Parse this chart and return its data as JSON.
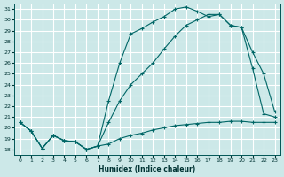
{
  "xlabel": "Humidex (Indice chaleur)",
  "bg_color": "#cce8e8",
  "grid_color": "#ffffff",
  "line_color": "#006666",
  "xlim": [
    -0.5,
    23.5
  ],
  "ylim": [
    17.5,
    31.5
  ],
  "xticks": [
    0,
    1,
    2,
    3,
    4,
    5,
    6,
    7,
    8,
    9,
    10,
    11,
    12,
    13,
    14,
    15,
    16,
    17,
    18,
    19,
    20,
    21,
    22,
    23
  ],
  "yticks": [
    18,
    19,
    20,
    21,
    22,
    23,
    24,
    25,
    26,
    27,
    28,
    29,
    30,
    31
  ],
  "line1_x": [
    0,
    1,
    2,
    3,
    4,
    5,
    6,
    7,
    8,
    9,
    10,
    11,
    12,
    13,
    14,
    15,
    16,
    17,
    18,
    19,
    20,
    21,
    22,
    23
  ],
  "line1_y": [
    20.5,
    19.7,
    18.1,
    19.3,
    18.8,
    18.7,
    18.0,
    18.3,
    18.5,
    19.0,
    19.3,
    19.5,
    19.8,
    20.0,
    20.2,
    20.3,
    20.4,
    20.5,
    20.5,
    20.6,
    20.6,
    20.5,
    20.5,
    20.5
  ],
  "line2_x": [
    0,
    1,
    2,
    3,
    4,
    5,
    6,
    7,
    8,
    9,
    10,
    11,
    12,
    13,
    14,
    15,
    16,
    17,
    18,
    19,
    20,
    21,
    22,
    23
  ],
  "line2_y": [
    20.5,
    19.7,
    18.1,
    19.3,
    18.8,
    18.7,
    18.0,
    18.3,
    20.5,
    22.5,
    24.0,
    25.0,
    26.0,
    27.3,
    28.5,
    29.5,
    30.0,
    30.5,
    30.5,
    29.5,
    29.3,
    25.5,
    21.3,
    21.0
  ],
  "line3_x": [
    0,
    1,
    2,
    3,
    4,
    5,
    6,
    7,
    8,
    9,
    10,
    11,
    12,
    13,
    14,
    15,
    16,
    17,
    18,
    19,
    20,
    21,
    22,
    23
  ],
  "line3_y": [
    20.5,
    19.7,
    18.1,
    19.3,
    18.8,
    18.7,
    18.0,
    18.3,
    22.5,
    26.0,
    28.7,
    29.2,
    29.8,
    30.3,
    31.0,
    31.2,
    30.8,
    30.3,
    30.5,
    29.5,
    29.3,
    27.0,
    25.0,
    21.5
  ]
}
